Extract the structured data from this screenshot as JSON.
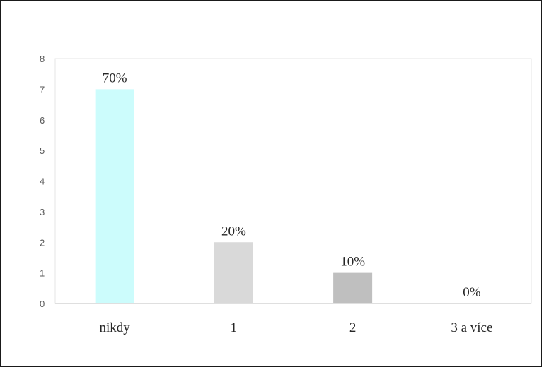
{
  "chart_data": {
    "type": "bar",
    "categories": [
      "nikdy",
      "1",
      "2",
      "3 a více"
    ],
    "values": [
      7,
      2,
      1,
      0
    ],
    "data_labels": [
      "70%",
      "20%",
      "10%",
      "0%"
    ],
    "colors": [
      "#ccfcfc",
      "#d9d9d9",
      "#bfbfbf",
      "#a6a6a6"
    ],
    "yticks": [
      "0",
      "1",
      "2",
      "3",
      "4",
      "5",
      "6",
      "7",
      "8"
    ],
    "ylim": [
      0,
      8
    ],
    "grid": false,
    "title": "",
    "xlabel": "",
    "ylabel": ""
  }
}
